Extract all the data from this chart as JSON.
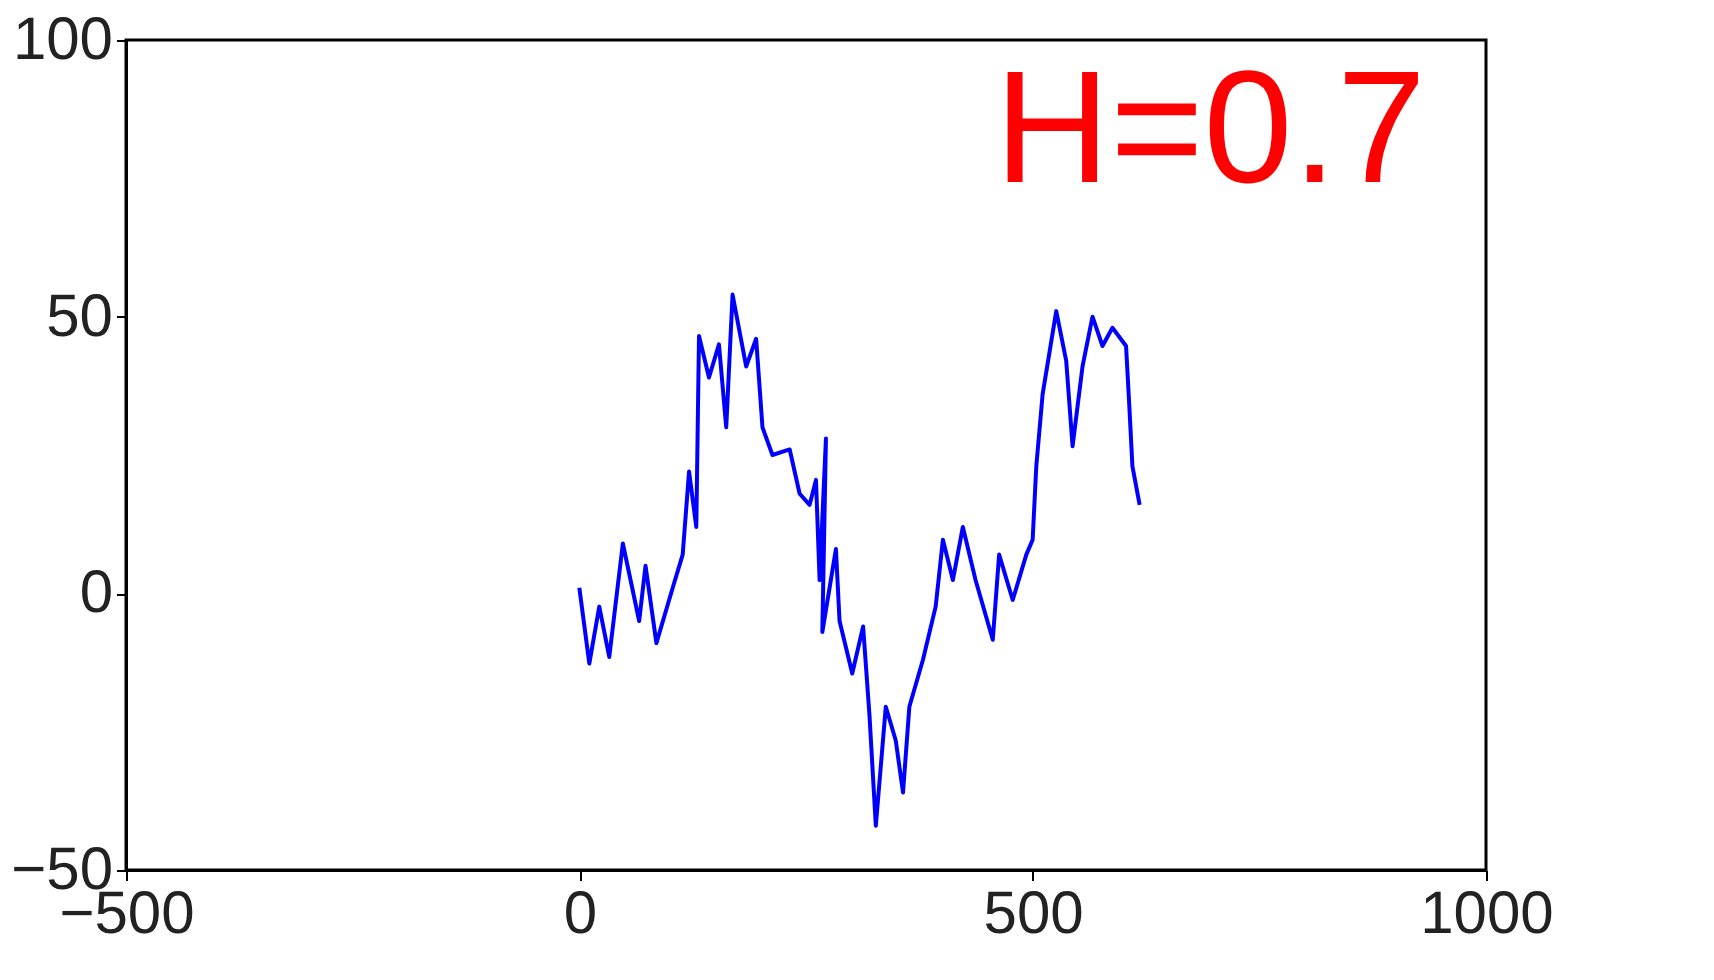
{
  "chart_data": {
    "type": "line",
    "annotations": [
      "H=0.7"
    ],
    "x": [
      0,
      11,
      22,
      33,
      48,
      66,
      73,
      85,
      103,
      114,
      121,
      129,
      132,
      143,
      154,
      162,
      169,
      184,
      195,
      202,
      213,
      232,
      243,
      254,
      261,
      265,
      272,
      268,
      283,
      287,
      301,
      313,
      320,
      327,
      338,
      349,
      357,
      364,
      379,
      393,
      401,
      412,
      423,
      437,
      456,
      463,
      478,
      493,
      500,
      504,
      511,
      526,
      537,
      544,
      555,
      566,
      577,
      588,
      603,
      607,
      610,
      618
    ],
    "series": [
      {
        "color": "#0000ff",
        "values": [
          1,
          -12.7,
          -2.4,
          -11.5,
          9,
          -5,
          5,
          -9,
          1,
          7,
          22,
          12,
          46.5,
          39,
          45,
          30,
          54,
          41,
          46,
          30,
          25,
          26,
          18,
          16,
          20.5,
          2.4,
          28,
          -7,
          8,
          -5,
          -14.5,
          -6,
          -22,
          -42,
          -20.5,
          -26.6,
          -36,
          -20.5,
          -12,
          -2.4,
          9.7,
          2.4,
          12,
          2.4,
          -8.4,
          7,
          -1.2,
          7,
          9.7,
          23,
          36,
          51,
          42,
          26.6,
          41,
          50,
          44.7,
          48,
          44.7,
          32.6,
          23,
          16
        ]
      }
    ],
    "xlim": [
      -500,
      1000
    ],
    "ylim": [
      -50,
      100
    ],
    "xticks": [
      -500,
      0,
      500,
      1000
    ],
    "yticks": [
      -50,
      0,
      50,
      100
    ],
    "grid": false,
    "legend": false
  }
}
